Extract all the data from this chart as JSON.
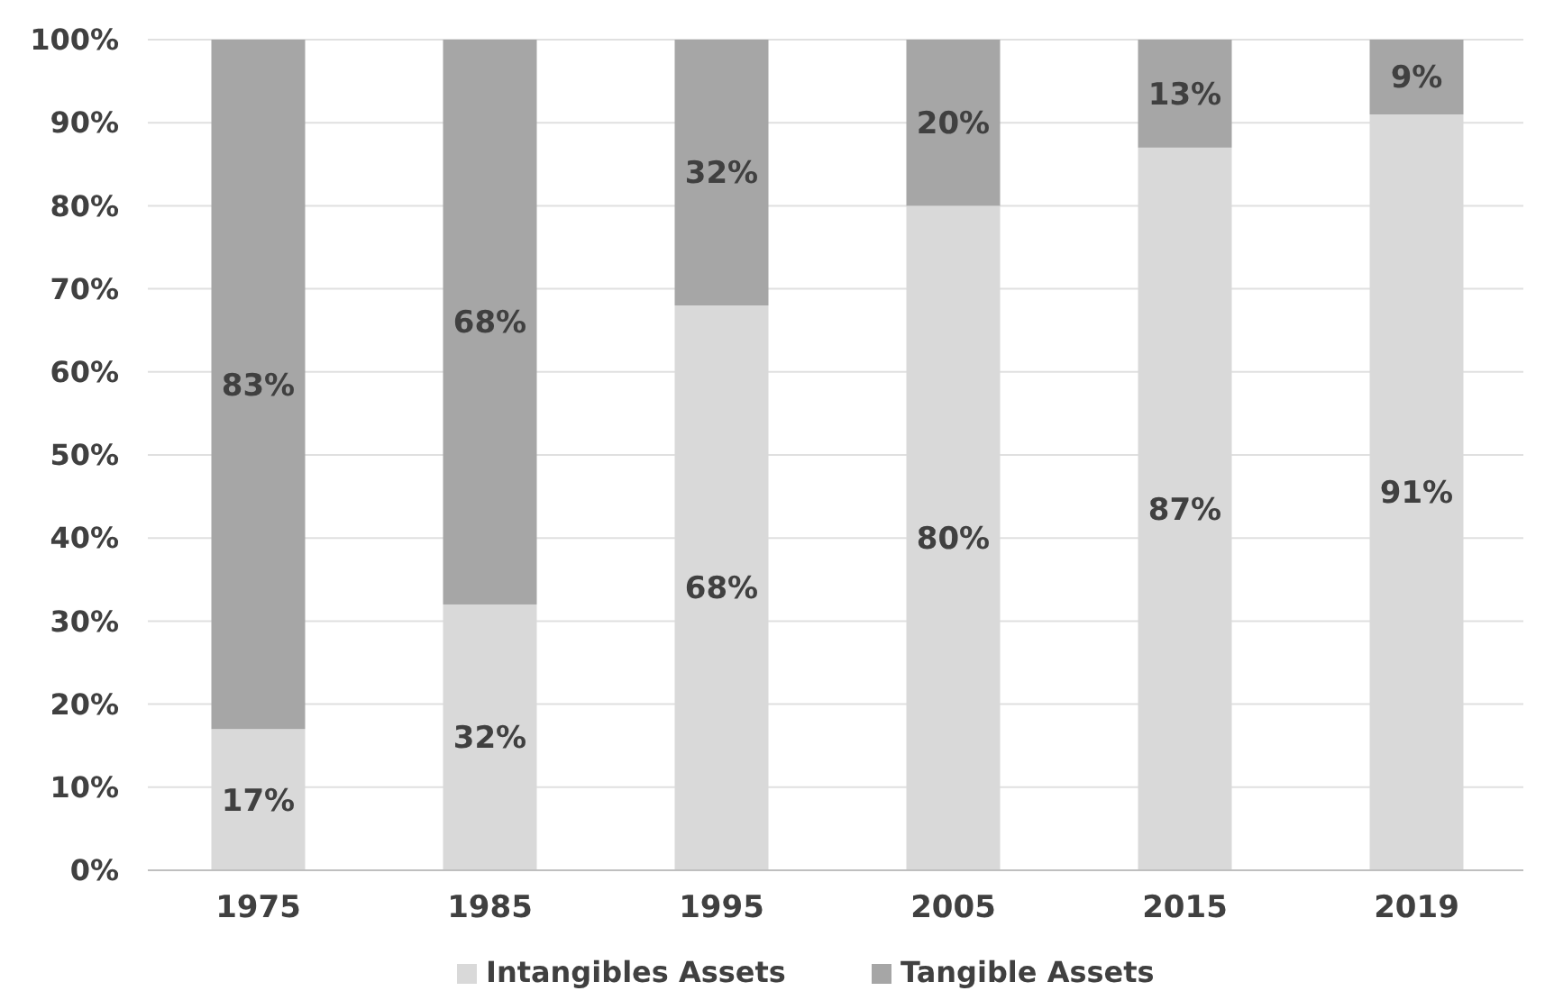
{
  "chart_data": {
    "type": "bar",
    "stacked": true,
    "categories": [
      "1975",
      "1985",
      "1995",
      "2005",
      "2015",
      "2019"
    ],
    "series": [
      {
        "name": "Intangibles Assets",
        "color": "#d9d9d9",
        "values": [
          17,
          32,
          68,
          80,
          87,
          91
        ],
        "value_labels": [
          "17%",
          "32%",
          "68%",
          "80%",
          "87%",
          "91%"
        ]
      },
      {
        "name": "Tangible Assets",
        "color": "#a6a6a6",
        "values": [
          83,
          68,
          32,
          20,
          13,
          9
        ],
        "value_labels": [
          "83%",
          "68%",
          "32%",
          "20%",
          "13%",
          "9%"
        ]
      }
    ],
    "ylim": [
      0,
      100
    ],
    "yticks": [
      {
        "value": 0,
        "label": "0%"
      },
      {
        "value": 10,
        "label": "10%"
      },
      {
        "value": 20,
        "label": "20%"
      },
      {
        "value": 30,
        "label": "30%"
      },
      {
        "value": 40,
        "label": "40%"
      },
      {
        "value": 50,
        "label": "50%"
      },
      {
        "value": 60,
        "label": "60%"
      },
      {
        "value": 70,
        "label": "70%"
      },
      {
        "value": 80,
        "label": "80%"
      },
      {
        "value": 90,
        "label": "90%"
      },
      {
        "value": 100,
        "label": "100%"
      }
    ],
    "grid": "y",
    "legend": "bottom"
  }
}
